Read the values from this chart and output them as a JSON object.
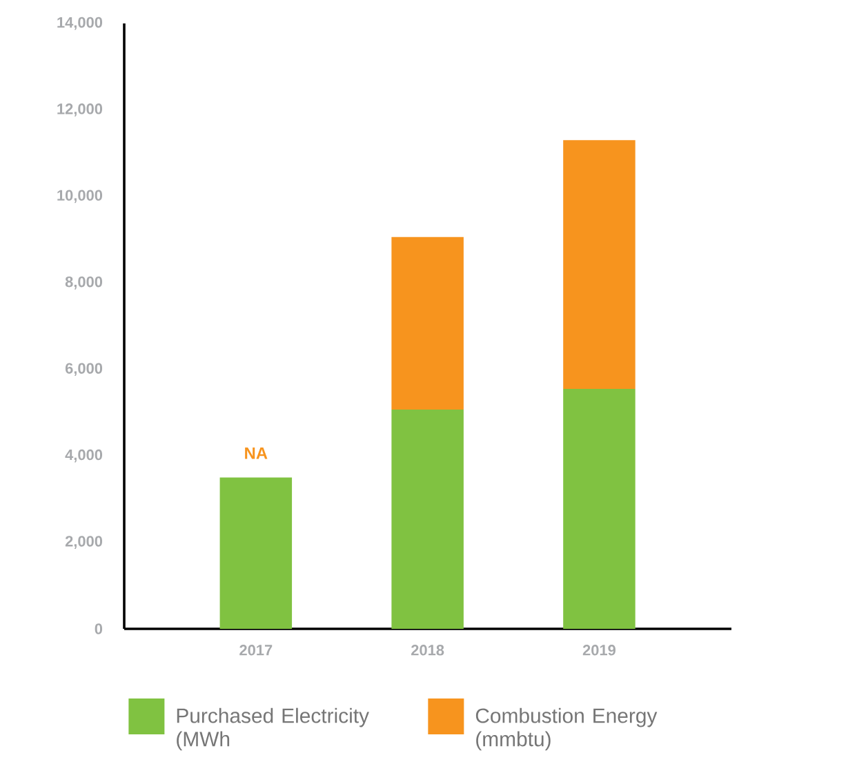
{
  "chart_data": {
    "type": "bar",
    "stacked": true,
    "categories": [
      "2017",
      "2018",
      "2019"
    ],
    "series": [
      {
        "name": "Purchased Electricity (MWh",
        "color": "#80c241",
        "values": [
          3500,
          5070,
          5550
        ]
      },
      {
        "name": "Combustion Energy (mmbtu)",
        "color": "#f7941e",
        "values": [
          null,
          3990,
          5750
        ]
      }
    ],
    "ylim": [
      0,
      14000
    ],
    "yticks": [
      {
        "value": 0,
        "label": "0"
      },
      {
        "value": 2000,
        "label": "2,000"
      },
      {
        "value": 4000,
        "label": "4,000"
      },
      {
        "value": 6000,
        "label": "6,000"
      },
      {
        "value": 8000,
        "label": "8,000"
      },
      {
        "value": 10000,
        "label": "10,000"
      },
      {
        "value": 12000,
        "label": "12,000"
      },
      {
        "value": 14000,
        "label": "14,000"
      }
    ],
    "annotations": [
      {
        "text": "NA",
        "x": "2017",
        "y": 3500
      }
    ],
    "legend": "bottom",
    "grid": false
  }
}
